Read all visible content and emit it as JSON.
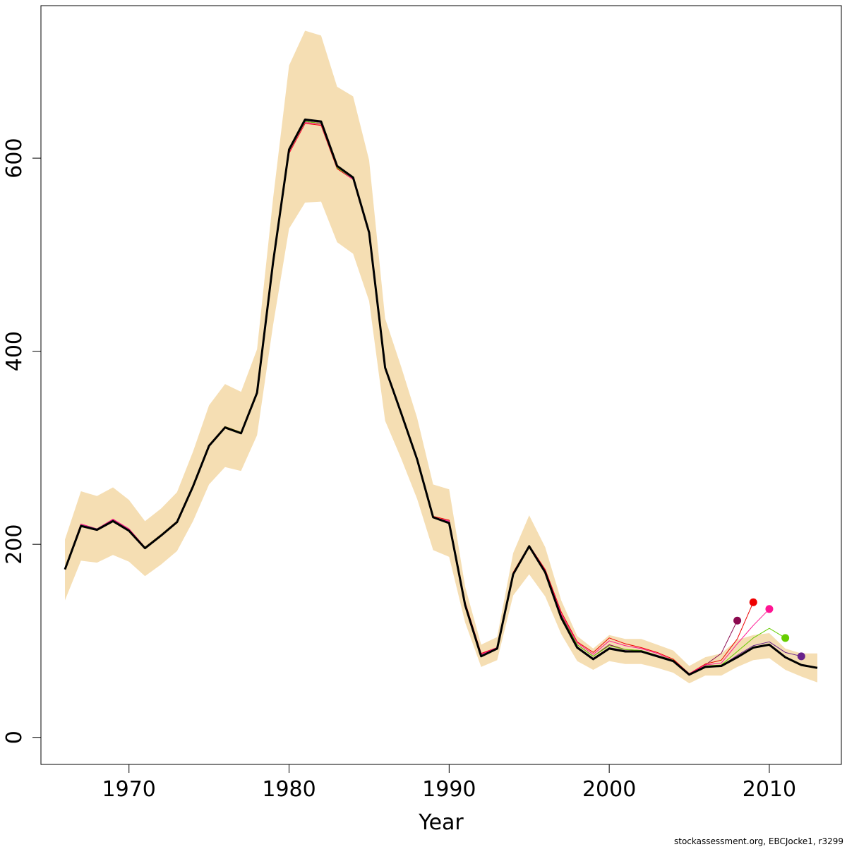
{
  "chart_data": {
    "type": "line",
    "xlabel": "Year",
    "ylabel": "",
    "xlim": [
      1964.5,
      2014.5
    ],
    "ylim": [
      -28,
      758
    ],
    "x_ticks": [
      1970,
      1980,
      1990,
      2000,
      2010
    ],
    "y_ticks": [
      0,
      200,
      400,
      600
    ],
    "grid": false,
    "legend": "none",
    "credit": "stockassessment.org, EBCJocke1, r3299",
    "colors": {
      "band": "#f5deb3",
      "main": "#000000",
      "retro": [
        "#8b0a50",
        "#ee0000",
        "#ff1493",
        "#66cd00",
        "#68228b"
      ]
    },
    "band": {
      "x": [
        1966,
        1967,
        1968,
        1969,
        1970,
        1971,
        1972,
        1973,
        1974,
        1975,
        1976,
        1977,
        1978,
        1979,
        1980,
        1981,
        1982,
        1983,
        1984,
        1985,
        1986,
        1987,
        1988,
        1989,
        1990,
        1991,
        1992,
        1993,
        1994,
        1995,
        1996,
        1997,
        1998,
        1999,
        2000,
        2001,
        2002,
        2003,
        2004,
        2005,
        2006,
        2007,
        2008,
        2009,
        2010,
        2011,
        2012,
        2013
      ],
      "lower": [
        142,
        183,
        181,
        189,
        182,
        167,
        179,
        193,
        224,
        262,
        280,
        276,
        313,
        427,
        527,
        554,
        555,
        513,
        501,
        452,
        328,
        289,
        247,
        194,
        187,
        119,
        73,
        80,
        147,
        169,
        146,
        107,
        79,
        70,
        79,
        76,
        76,
        72,
        67,
        56,
        64,
        64,
        73,
        80,
        82,
        70,
        63,
        57
      ],
      "upper": [
        205,
        255,
        250,
        259,
        246,
        224,
        237,
        254,
        296,
        344,
        366,
        358,
        402,
        558,
        696,
        732,
        727,
        674,
        664,
        598,
        434,
        384,
        331,
        262,
        257,
        156,
        96,
        104,
        191,
        230,
        197,
        142,
        105,
        92,
        106,
        102,
        102,
        96,
        90,
        74,
        83,
        87,
        101,
        106,
        108,
        92,
        87,
        87
      ]
    },
    "series": [
      {
        "x": [
          1966,
          1967,
          1968,
          1969,
          1970,
          1971,
          1972,
          1973,
          1974,
          1975,
          1976,
          1977,
          1978,
          1979,
          1980,
          1981,
          1982,
          1983,
          1984,
          1985,
          1986,
          1987,
          1988,
          1989,
          1990,
          1991,
          1992,
          1993,
          1994,
          1995,
          1996,
          1997,
          1998,
          1999,
          2000,
          2001,
          2002,
          2003,
          2004,
          2005,
          2006,
          2007,
          2008,
          2009,
          2010,
          2011,
          2012,
          2013
        ],
        "y": [
          174,
          219,
          215,
          224,
          214,
          196,
          209,
          223,
          260,
          302,
          321,
          315,
          357,
          492,
          609,
          640,
          638,
          592,
          580,
          523,
          383,
          336,
          288,
          228,
          222,
          137,
          84,
          92,
          169,
          198,
          171,
          124,
          93,
          81,
          92,
          89,
          89,
          84,
          79,
          65,
          73,
          74,
          83,
          93,
          96,
          83,
          75,
          72
        ]
      },
      {
        "x": [
          1966,
          1967,
          1968,
          1969,
          1970,
          1971,
          1972,
          1973,
          1974,
          1975,
          1976,
          1977,
          1978,
          1979,
          1980,
          1981,
          1982,
          1983,
          1984,
          1985,
          1986,
          1987,
          1988,
          1989,
          1990,
          1991,
          1992,
          1993,
          1994,
          1995,
          1996,
          1997,
          1998,
          1999,
          2000,
          2001,
          2002,
          2003,
          2004,
          2005,
          2006,
          2007,
          2008
        ],
        "y": [
          175,
          220,
          216,
          225,
          216,
          197,
          210,
          224,
          261,
          303,
          322,
          316,
          358,
          493,
          607,
          638,
          636,
          591,
          579,
          522,
          382,
          336,
          288,
          228,
          224,
          139,
          86,
          93,
          170,
          199,
          173,
          127,
          96,
          84,
          96,
          91,
          90,
          85,
          80,
          66,
          75,
          87,
          121
        ]
      },
      {
        "x": [
          1966,
          1967,
          1968,
          1969,
          1970,
          1971,
          1972,
          1973,
          1974,
          1975,
          1976,
          1977,
          1978,
          1979,
          1980,
          1981,
          1982,
          1983,
          1984,
          1985,
          1986,
          1987,
          1988,
          1989,
          1990,
          1991,
          1992,
          1993,
          1994,
          1995,
          1996,
          1997,
          1998,
          1999,
          2000,
          2001,
          2002,
          2003,
          2004,
          2005,
          2006,
          2007,
          2008,
          2009
        ],
        "y": [
          175,
          221,
          216,
          226,
          216,
          197,
          210,
          224,
          261,
          303,
          322,
          316,
          358,
          492,
          605,
          636,
          634,
          589,
          578,
          521,
          382,
          335,
          287,
          229,
          225,
          140,
          87,
          93,
          171,
          199,
          174,
          130,
          99,
          88,
          103,
          97,
          93,
          88,
          81,
          66,
          76,
          80,
          102,
          140
        ]
      },
      {
        "x": [
          1966,
          1967,
          1968,
          1969,
          1970,
          1971,
          1972,
          1973,
          1974,
          1975,
          1976,
          1977,
          1978,
          1979,
          1980,
          1981,
          1982,
          1983,
          1984,
          1985,
          1986,
          1987,
          1988,
          1989,
          1990,
          1991,
          1992,
          1993,
          1994,
          1995,
          1996,
          1997,
          1998,
          1999,
          2000,
          2001,
          2002,
          2003,
          2004,
          2005,
          2006,
          2007,
          2008,
          2009,
          2010
        ],
        "y": [
          175,
          221,
          216,
          226,
          216,
          197,
          210,
          224,
          261,
          303,
          322,
          316,
          358,
          492,
          606,
          637,
          635,
          590,
          578,
          521,
          382,
          335,
          287,
          228,
          224,
          139,
          86,
          93,
          170,
          199,
          173,
          128,
          98,
          86,
          100,
          95,
          92,
          87,
          80,
          66,
          75,
          77,
          97,
          116,
          133
        ]
      },
      {
        "x": [
          1966,
          1967,
          1968,
          1969,
          1970,
          1971,
          1972,
          1973,
          1974,
          1975,
          1976,
          1977,
          1978,
          1979,
          1980,
          1981,
          1982,
          1983,
          1984,
          1985,
          1986,
          1987,
          1988,
          1989,
          1990,
          1991,
          1992,
          1993,
          1994,
          1995,
          1996,
          1997,
          1998,
          1999,
          2000,
          2001,
          2002,
          2003,
          2004,
          2005,
          2006,
          2007,
          2008,
          2009,
          2010,
          2011
        ],
        "y": [
          175,
          220,
          216,
          225,
          215,
          197,
          210,
          224,
          261,
          303,
          322,
          316,
          358,
          492,
          607,
          638,
          636,
          590,
          579,
          522,
          382,
          335,
          287,
          228,
          223,
          138,
          85,
          92,
          170,
          199,
          172,
          126,
          96,
          84,
          95,
          91,
          90,
          85,
          80,
          65,
          74,
          75,
          89,
          103,
          113,
          103
        ]
      },
      {
        "x": [
          1966,
          1967,
          1968,
          1969,
          1970,
          1971,
          1972,
          1973,
          1974,
          1975,
          1976,
          1977,
          1978,
          1979,
          1980,
          1981,
          1982,
          1983,
          1984,
          1985,
          1986,
          1987,
          1988,
          1989,
          1990,
          1991,
          1992,
          1993,
          1994,
          1995,
          1996,
          1997,
          1998,
          1999,
          2000,
          2001,
          2002,
          2003,
          2004,
          2005,
          2006,
          2007,
          2008,
          2009,
          2010,
          2011,
          2012
        ],
        "y": [
          175,
          220,
          216,
          225,
          215,
          196,
          209,
          223,
          260,
          302,
          321,
          315,
          357,
          492,
          608,
          639,
          637,
          591,
          579,
          522,
          382,
          335,
          287,
          228,
          223,
          138,
          85,
          92,
          169,
          198,
          171,
          125,
          94,
          82,
          93,
          90,
          89,
          85,
          79,
          65,
          73,
          74,
          85,
          95,
          99,
          88,
          84
        ]
      }
    ]
  }
}
